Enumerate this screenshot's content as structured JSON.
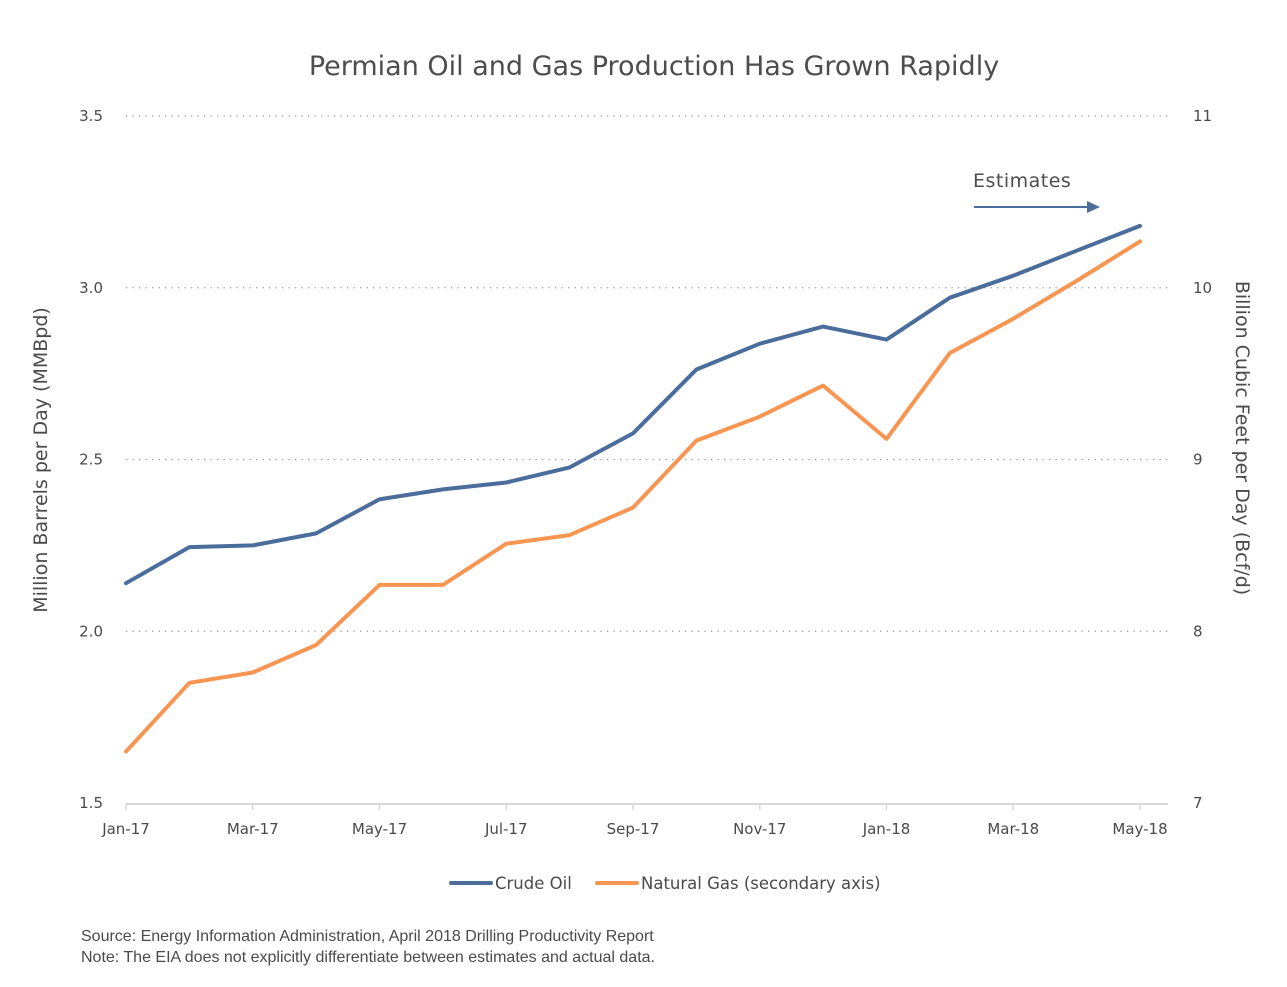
{
  "chart_data": {
    "type": "line",
    "title": "Permian Oil and Gas Production Has Grown Rapidly",
    "xlabel": "",
    "ylabel": "Million Barrels per Day (MMBpd)",
    "y2label": "Billion Cubic Feet per Day (Bcf/d)",
    "x": [
      "Jan-17",
      "Feb-17",
      "Mar-17",
      "Apr-17",
      "May-17",
      "Jun-17",
      "Jul-17",
      "Aug-17",
      "Sep-17",
      "Oct-17",
      "Nov-17",
      "Dec-17",
      "Jan-18",
      "Feb-18",
      "Mar-18",
      "Apr-18",
      "May-18"
    ],
    "x_tick_labels": [
      "Jan-17",
      "Mar-17",
      "May-17",
      "Jul-17",
      "Sep-17",
      "Nov-17",
      "Jan-18",
      "Mar-18",
      "May-18"
    ],
    "ylim": [
      1.5,
      3.5
    ],
    "y_ticks": [
      "1.5",
      "2.0",
      "2.5",
      "3.0",
      "3.5"
    ],
    "y2lim": [
      7,
      11
    ],
    "y2_ticks": [
      "7",
      "8",
      "9",
      "10",
      "11"
    ],
    "grid": "horizontal-dotted",
    "legend_position": "bottom-center",
    "series": [
      {
        "name": "Crude Oil",
        "axis": "left",
        "color": "#4a6d9c",
        "values": [
          2.14,
          2.245,
          2.25,
          2.285,
          2.384,
          2.413,
          2.433,
          2.477,
          2.576,
          2.762,
          2.837,
          2.887,
          2.849,
          2.971,
          3.035,
          3.108,
          3.18
        ]
      },
      {
        "name": "Natural Gas (secondary axis)",
        "axis": "right",
        "color": "#f79552",
        "values": [
          7.3,
          7.7,
          7.76,
          7.92,
          8.27,
          8.27,
          8.51,
          8.56,
          8.72,
          9.11,
          9.25,
          9.43,
          9.12,
          9.62,
          9.82,
          10.04,
          10.27
        ]
      }
    ],
    "annotations": [
      {
        "text": "Estimates",
        "type": "arrow-right",
        "color": "#4a6d9c",
        "near_x": "Feb-18"
      }
    ]
  },
  "footer": {
    "source": "Source: Energy Information Administration, April 2018 Drilling Productivity Report",
    "note": "Note: The EIA does not explicitly differentiate between estimates and actual data."
  }
}
